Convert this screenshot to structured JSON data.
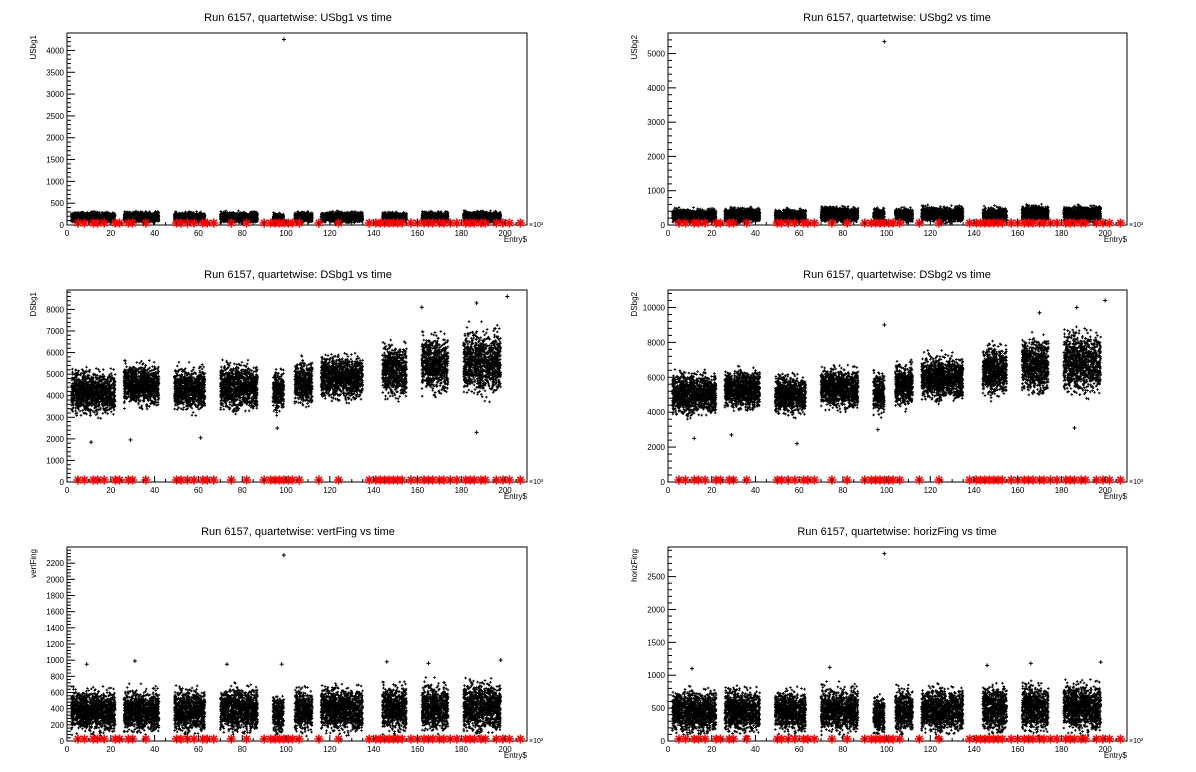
{
  "chart_data": [
    {
      "type": "scatter",
      "title": "Run 6157, quartetwise: USbg1 vs time",
      "xlabel": "Entry$",
      "ylabel": "USbg1",
      "x_exponent_label": "×10³",
      "xlim": [
        0,
        210
      ],
      "ylim": [
        0,
        4400
      ],
      "xticks": [
        0,
        20,
        40,
        60,
        80,
        100,
        120,
        140,
        160,
        180,
        200
      ],
      "yticks": [
        0,
        500,
        1000,
        1500,
        2000,
        2500,
        3000,
        3500,
        4000
      ],
      "black_clusters": [
        {
          "x0": 2,
          "x1": 22,
          "lo": 20,
          "hi": 330
        },
        {
          "x0": 26,
          "x1": 42,
          "lo": 20,
          "hi": 340
        },
        {
          "x0": 49,
          "x1": 63,
          "lo": 20,
          "hi": 330
        },
        {
          "x0": 70,
          "x1": 87,
          "lo": 20,
          "hi": 330
        },
        {
          "x0": 94,
          "x1": 99,
          "lo": 20,
          "hi": 300
        },
        {
          "x0": 104,
          "x1": 112,
          "lo": 20,
          "hi": 330
        },
        {
          "x0": 116,
          "x1": 135,
          "lo": 20,
          "hi": 340
        },
        {
          "x0": 144,
          "x1": 155,
          "lo": 20,
          "hi": 330
        },
        {
          "x0": 162,
          "x1": 174,
          "lo": 20,
          "hi": 340
        },
        {
          "x0": 181,
          "x1": 198,
          "lo": 20,
          "hi": 350
        }
      ],
      "outliers": [
        {
          "x": 99,
          "y": 4250
        }
      ],
      "red_x": [
        5,
        8,
        12,
        14,
        17,
        22,
        24,
        28,
        30,
        36,
        50,
        52,
        55,
        58,
        62,
        64,
        67,
        75,
        82,
        90,
        93,
        95,
        97,
        99,
        101,
        103,
        106,
        115,
        124,
        138,
        141,
        143,
        145,
        147,
        149,
        151,
        153,
        157,
        160,
        163,
        165,
        167,
        170,
        172,
        175,
        178,
        182,
        184,
        186,
        189,
        191,
        196,
        199,
        202,
        207
      ]
    },
    {
      "type": "scatter",
      "title": "Run 6157, quartetwise: USbg2 vs time",
      "xlabel": "Entry$",
      "ylabel": "USbg2",
      "x_exponent_label": "×10³",
      "xlim": [
        0,
        210
      ],
      "ylim": [
        0,
        5600
      ],
      "xticks": [
        0,
        20,
        40,
        60,
        80,
        100,
        120,
        140,
        160,
        180,
        200
      ],
      "yticks": [
        0,
        1000,
        2000,
        3000,
        4000,
        5000
      ],
      "black_clusters": [
        {
          "x0": 2,
          "x1": 22,
          "lo": 20,
          "hi": 520
        },
        {
          "x0": 26,
          "x1": 42,
          "lo": 20,
          "hi": 560
        },
        {
          "x0": 49,
          "x1": 63,
          "lo": 20,
          "hi": 520
        },
        {
          "x0": 70,
          "x1": 87,
          "lo": 20,
          "hi": 600
        },
        {
          "x0": 94,
          "x1": 99,
          "lo": 20,
          "hi": 540
        },
        {
          "x0": 104,
          "x1": 112,
          "lo": 20,
          "hi": 560
        },
        {
          "x0": 116,
          "x1": 135,
          "lo": 20,
          "hi": 600
        },
        {
          "x0": 144,
          "x1": 155,
          "lo": 20,
          "hi": 580
        },
        {
          "x0": 162,
          "x1": 174,
          "lo": 20,
          "hi": 640
        },
        {
          "x0": 181,
          "x1": 198,
          "lo": 20,
          "hi": 620
        }
      ],
      "outliers": [
        {
          "x": 99,
          "y": 5350
        }
      ],
      "red_x": [
        5,
        8,
        12,
        14,
        17,
        22,
        24,
        28,
        30,
        36,
        50,
        52,
        55,
        58,
        62,
        64,
        67,
        75,
        82,
        90,
        93,
        95,
        97,
        99,
        101,
        103,
        106,
        115,
        124,
        138,
        141,
        143,
        145,
        147,
        149,
        151,
        153,
        157,
        160,
        163,
        165,
        167,
        170,
        172,
        175,
        178,
        182,
        184,
        186,
        189,
        191,
        196,
        199,
        202,
        207
      ]
    },
    {
      "type": "scatter",
      "title": "Run 6157, quartetwise: DSbg1 vs time",
      "xlabel": "Entry$",
      "ylabel": "DSbg1",
      "x_exponent_label": "×10³",
      "xlim": [
        0,
        210
      ],
      "ylim": [
        0,
        8900
      ],
      "xticks": [
        0,
        20,
        40,
        60,
        80,
        100,
        120,
        140,
        160,
        180,
        200
      ],
      "yticks": [
        0,
        1000,
        2000,
        3000,
        4000,
        5000,
        6000,
        7000,
        8000
      ],
      "black_clusters": [
        {
          "x0": 2,
          "x1": 22,
          "lo": 2800,
          "hi": 5500
        },
        {
          "x0": 26,
          "x1": 42,
          "lo": 3200,
          "hi": 5800
        },
        {
          "x0": 49,
          "x1": 63,
          "lo": 3000,
          "hi": 5600
        },
        {
          "x0": 70,
          "x1": 87,
          "lo": 3000,
          "hi": 5800
        },
        {
          "x0": 94,
          "x1": 99,
          "lo": 3000,
          "hi": 5500
        },
        {
          "x0": 104,
          "x1": 112,
          "lo": 3200,
          "hi": 6000
        },
        {
          "x0": 116,
          "x1": 135,
          "lo": 3500,
          "hi": 6200
        },
        {
          "x0": 144,
          "x1": 155,
          "lo": 3500,
          "hi": 6800
        },
        {
          "x0": 162,
          "x1": 174,
          "lo": 3700,
          "hi": 7200
        },
        {
          "x0": 181,
          "x1": 198,
          "lo": 3600,
          "hi": 7500
        }
      ],
      "outliers": [
        {
          "x": 11,
          "y": 1850
        },
        {
          "x": 29,
          "y": 1950
        },
        {
          "x": 61,
          "y": 2050
        },
        {
          "x": 96,
          "y": 2500
        },
        {
          "x": 162,
          "y": 8100
        },
        {
          "x": 187,
          "y": 8300
        },
        {
          "x": 201,
          "y": 8600
        },
        {
          "x": 187,
          "y": 2300
        }
      ],
      "red_x": [
        5,
        8,
        12,
        14,
        17,
        22,
        24,
        28,
        30,
        36,
        50,
        52,
        55,
        58,
        62,
        64,
        67,
        75,
        82,
        90,
        93,
        95,
        97,
        99,
        101,
        103,
        106,
        115,
        124,
        138,
        141,
        143,
        145,
        147,
        149,
        151,
        153,
        157,
        160,
        163,
        165,
        167,
        170,
        172,
        175,
        178,
        182,
        184,
        186,
        189,
        191,
        196,
        199,
        202,
        207
      ]
    },
    {
      "type": "scatter",
      "title": "Run 6157, quartetwise: DSbg2 vs time",
      "xlabel": "Entry$",
      "ylabel": "DSbg2",
      "x_exponent_label": "×10³",
      "xlim": [
        0,
        210
      ],
      "ylim": [
        0,
        11000
      ],
      "xticks": [
        0,
        20,
        40,
        60,
        80,
        100,
        120,
        140,
        160,
        180,
        200
      ],
      "yticks": [
        0,
        2000,
        4000,
        6000,
        8000,
        10000
      ],
      "black_clusters": [
        {
          "x0": 2,
          "x1": 22,
          "lo": 3500,
          "hi": 6600
        },
        {
          "x0": 26,
          "x1": 42,
          "lo": 3800,
          "hi": 6800
        },
        {
          "x0": 49,
          "x1": 63,
          "lo": 3500,
          "hi": 6500
        },
        {
          "x0": 70,
          "x1": 87,
          "lo": 3800,
          "hi": 6900
        },
        {
          "x0": 94,
          "x1": 99,
          "lo": 3600,
          "hi": 6600
        },
        {
          "x0": 104,
          "x1": 112,
          "lo": 3900,
          "hi": 7200
        },
        {
          "x0": 116,
          "x1": 135,
          "lo": 4300,
          "hi": 7600
        },
        {
          "x0": 144,
          "x1": 155,
          "lo": 4500,
          "hi": 8300
        },
        {
          "x0": 162,
          "x1": 174,
          "lo": 4600,
          "hi": 8800
        },
        {
          "x0": 181,
          "x1": 198,
          "lo": 4500,
          "hi": 9200
        }
      ],
      "outliers": [
        {
          "x": 12,
          "y": 2500
        },
        {
          "x": 29,
          "y": 2700
        },
        {
          "x": 59,
          "y": 2200
        },
        {
          "x": 96,
          "y": 3000
        },
        {
          "x": 99,
          "y": 9000
        },
        {
          "x": 170,
          "y": 9700
        },
        {
          "x": 187,
          "y": 10000
        },
        {
          "x": 200,
          "y": 10400
        },
        {
          "x": 186,
          "y": 3100
        }
      ],
      "red_x": [
        5,
        8,
        12,
        14,
        17,
        22,
        24,
        28,
        30,
        36,
        50,
        52,
        55,
        58,
        62,
        64,
        67,
        75,
        82,
        90,
        93,
        95,
        97,
        99,
        101,
        103,
        106,
        115,
        124,
        138,
        141,
        143,
        145,
        147,
        149,
        151,
        153,
        157,
        160,
        163,
        165,
        167,
        170,
        172,
        175,
        178,
        182,
        184,
        186,
        189,
        191,
        196,
        199,
        202,
        207
      ]
    },
    {
      "type": "scatter",
      "title": "Run 6157, quartetwise: vertFing vs time",
      "xlabel": "Entry$",
      "ylabel": "vertFing",
      "x_exponent_label": "×10³",
      "xlim": [
        0,
        210
      ],
      "ylim": [
        0,
        2400
      ],
      "xticks": [
        0,
        20,
        40,
        60,
        80,
        100,
        120,
        140,
        160,
        180,
        200
      ],
      "yticks": [
        0,
        200,
        400,
        600,
        800,
        1000,
        1200,
        1400,
        1600,
        1800,
        2000,
        2200
      ],
      "black_clusters": [
        {
          "x0": 2,
          "x1": 22,
          "lo": 20,
          "hi": 720
        },
        {
          "x0": 26,
          "x1": 42,
          "lo": 20,
          "hi": 720
        },
        {
          "x0": 49,
          "x1": 63,
          "lo": 20,
          "hi": 720
        },
        {
          "x0": 70,
          "x1": 87,
          "lo": 20,
          "hi": 760
        },
        {
          "x0": 94,
          "x1": 99,
          "lo": 20,
          "hi": 640
        },
        {
          "x0": 104,
          "x1": 112,
          "lo": 20,
          "hi": 740
        },
        {
          "x0": 116,
          "x1": 135,
          "lo": 20,
          "hi": 760
        },
        {
          "x0": 144,
          "x1": 155,
          "lo": 20,
          "hi": 780
        },
        {
          "x0": 162,
          "x1": 174,
          "lo": 20,
          "hi": 800
        },
        {
          "x0": 181,
          "x1": 198,
          "lo": 20,
          "hi": 820
        }
      ],
      "outliers": [
        {
          "x": 99,
          "y": 2300
        },
        {
          "x": 9,
          "y": 950
        },
        {
          "x": 31,
          "y": 990
        },
        {
          "x": 73,
          "y": 950
        },
        {
          "x": 98,
          "y": 950
        },
        {
          "x": 146,
          "y": 980
        },
        {
          "x": 165,
          "y": 960
        },
        {
          "x": 198,
          "y": 1000
        }
      ],
      "red_x": [
        5,
        8,
        12,
        14,
        17,
        22,
        24,
        28,
        30,
        36,
        50,
        52,
        55,
        58,
        62,
        64,
        67,
        75,
        82,
        90,
        93,
        95,
        97,
        99,
        101,
        103,
        106,
        115,
        124,
        138,
        141,
        143,
        145,
        147,
        149,
        151,
        153,
        157,
        160,
        163,
        165,
        167,
        170,
        172,
        175,
        178,
        182,
        184,
        186,
        189,
        191,
        196,
        199,
        202,
        207
      ]
    },
    {
      "type": "scatter",
      "title": "Run 6157, quartetwise: horizFing vs time",
      "xlabel": "Entry$",
      "ylabel": "horizFing",
      "x_exponent_label": "×10³",
      "xlim": [
        0,
        210
      ],
      "ylim": [
        0,
        2950
      ],
      "xticks": [
        0,
        20,
        40,
        60,
        80,
        100,
        120,
        140,
        160,
        180,
        200
      ],
      "yticks": [
        0,
        500,
        1000,
        1500,
        2000,
        2500
      ],
      "black_clusters": [
        {
          "x0": 2,
          "x1": 22,
          "lo": 20,
          "hi": 880
        },
        {
          "x0": 26,
          "x1": 42,
          "lo": 20,
          "hi": 900
        },
        {
          "x0": 49,
          "x1": 63,
          "lo": 20,
          "hi": 880
        },
        {
          "x0": 70,
          "x1": 87,
          "lo": 20,
          "hi": 920
        },
        {
          "x0": 94,
          "x1": 99,
          "lo": 20,
          "hi": 780
        },
        {
          "x0": 104,
          "x1": 112,
          "lo": 20,
          "hi": 900
        },
        {
          "x0": 116,
          "x1": 135,
          "lo": 20,
          "hi": 920
        },
        {
          "x0": 144,
          "x1": 155,
          "lo": 20,
          "hi": 960
        },
        {
          "x0": 162,
          "x1": 174,
          "lo": 20,
          "hi": 980
        },
        {
          "x0": 181,
          "x1": 198,
          "lo": 20,
          "hi": 1000
        }
      ],
      "outliers": [
        {
          "x": 99,
          "y": 2850
        },
        {
          "x": 11,
          "y": 1100
        },
        {
          "x": 74,
          "y": 1120
        },
        {
          "x": 146,
          "y": 1150
        },
        {
          "x": 166,
          "y": 1180
        },
        {
          "x": 198,
          "y": 1200
        }
      ],
      "red_x": [
        5,
        8,
        12,
        14,
        17,
        22,
        24,
        28,
        30,
        36,
        50,
        52,
        55,
        58,
        62,
        64,
        67,
        75,
        82,
        90,
        93,
        95,
        97,
        99,
        101,
        103,
        106,
        115,
        124,
        138,
        141,
        143,
        145,
        147,
        149,
        151,
        153,
        157,
        160,
        163,
        165,
        167,
        170,
        172,
        175,
        178,
        182,
        184,
        186,
        189,
        191,
        196,
        199,
        202,
        207
      ]
    }
  ]
}
